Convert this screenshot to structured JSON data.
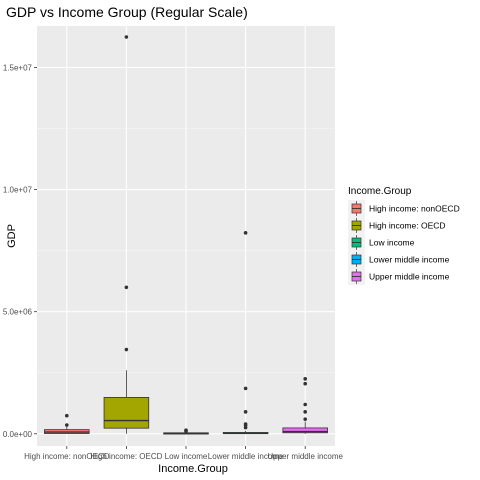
{
  "chart_data": {
    "type": "box",
    "title": "GDP vs Income Group (Regular Scale)",
    "xlabel": "Income.Group",
    "ylabel": "GDP",
    "ylim": [
      -500000,
      16700000
    ],
    "yticks": [
      {
        "value": 0,
        "label": "0.0e+00"
      },
      {
        "value": 5000000,
        "label": "5.0e+06"
      },
      {
        "value": 10000000,
        "label": "1.0e+07"
      },
      {
        "value": 15000000,
        "label": "1.5e+07"
      }
    ],
    "grid": true,
    "legend_position": "right",
    "legend_title": "Income.Group",
    "categories": [
      "High income: nonOECD",
      "High income: OECD",
      "Low income",
      "Lower middle income",
      "Upper middle income"
    ],
    "colors": [
      "#F8766D",
      "#A3A500",
      "#00BF7D",
      "#00B0F6",
      "#E76BF3"
    ],
    "boxes": [
      {
        "q1": 10000,
        "median": 70000,
        "q3": 170000,
        "whisker_low": 0,
        "whisker_high": 300000,
        "outliers": [
          360000,
          740000
        ]
      },
      {
        "q1": 230000,
        "median": 540000,
        "q3": 1490000,
        "whisker_low": 0,
        "whisker_high": 2600000,
        "outliers": [
          3450000,
          6000000,
          16250000
        ]
      },
      {
        "q1": 5000,
        "median": 15000,
        "q3": 40000,
        "whisker_low": 0,
        "whisker_high": 80000,
        "outliers": [
          110000,
          150000
        ]
      },
      {
        "q1": 5000,
        "median": 20000,
        "q3": 55000,
        "whisker_low": 0,
        "whisker_high": 120000,
        "outliers": [
          250000,
          340000,
          400000,
          900000,
          1860000,
          8230000
        ]
      },
      {
        "q1": 40000,
        "median": 90000,
        "q3": 240000,
        "whisker_low": 0,
        "whisker_high": 500000,
        "outliers": [
          600000,
          900000,
          1200000,
          2050000,
          2250000
        ]
      }
    ]
  }
}
